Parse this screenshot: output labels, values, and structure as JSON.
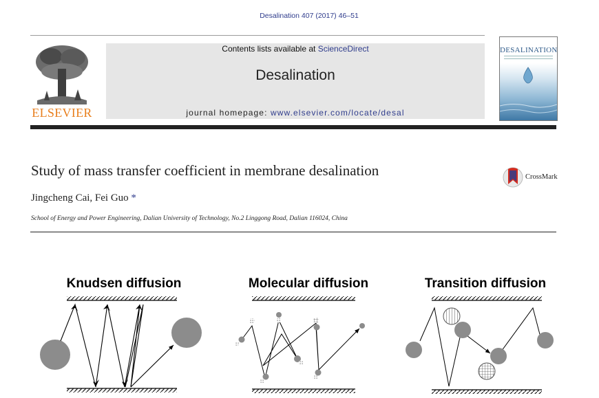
{
  "header": {
    "citation": "Desalination 407 (2017) 46–51",
    "contents_prefix": "Contents lists available at ",
    "contents_link": "ScienceDirect",
    "journal_name": "Desalination",
    "homepage_prefix": "journal homepage: ",
    "homepage_url": "www.elsevier.com/locate/desal",
    "publisher_logo_text": "ELSEVIER",
    "cover_title": "DESALINATION"
  },
  "article": {
    "title": "Study of mass transfer coefficient in membrane desalination",
    "authors": "Jingcheng Cai, Fei Guo",
    "corresponding_mark": "*",
    "affiliation": "School of Energy and Power Engineering, Dalian University of Technology, No.2 Linggong Road, Dalian 116024, China",
    "crossmark_label": "CrossMark"
  },
  "figure": {
    "panels": [
      {
        "title": "Knudsen diffusion"
      },
      {
        "title": "Molecular diffusion"
      },
      {
        "title": "Transition diffusion"
      }
    ]
  },
  "colors": {
    "link_blue": "#2f3c8c",
    "elsevier_orange": "#e87e1c",
    "banner_grey": "#e6e6e6",
    "particle_grey": "#8c8c8c"
  }
}
